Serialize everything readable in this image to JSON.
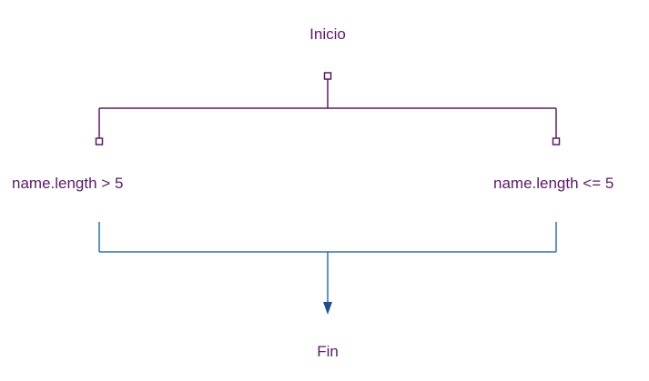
{
  "diagram": {
    "nodes": {
      "start": "Inicio",
      "branch_left": "name.length > 5",
      "branch_right": "name.length <= 5",
      "end": "Fin"
    },
    "colors": {
      "split_lines": "#5a1a66",
      "join_lines": "#2f6fa8",
      "arrow": "#1f4f8f",
      "text": "#5a1a66"
    }
  }
}
